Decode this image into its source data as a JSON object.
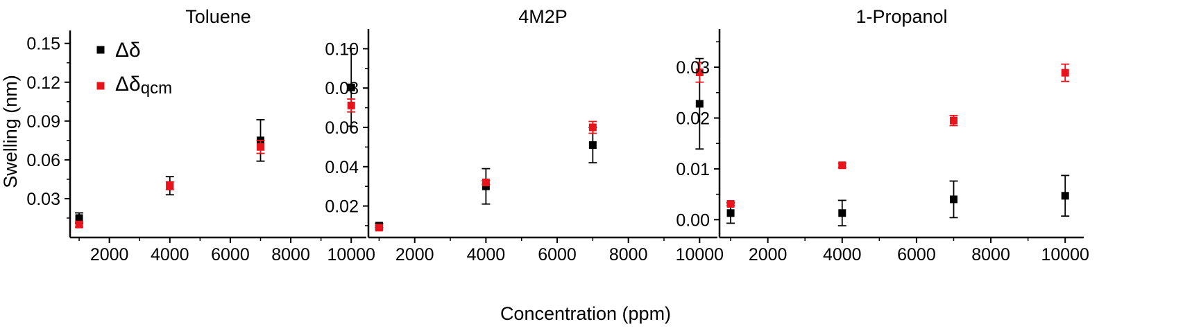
{
  "figure": {
    "ylabel": "Swelling (nm)",
    "xlabel": "Concentration (ppm)"
  },
  "legend": {
    "placement": "top-left of first panel",
    "entries": [
      {
        "symbol": "Δδ",
        "subscript": "",
        "color": "#000000"
      },
      {
        "symbol": "Δδ",
        "subscript": "qcm",
        "color": "#e8141b"
      }
    ]
  },
  "chart_data": [
    {
      "type": "scatter",
      "title": "Toluene",
      "xlabel": "Concentration (ppm)",
      "ylabel": "Swelling (nm)",
      "xlim": [
        700,
        10500
      ],
      "ylim": [
        0.0,
        0.16
      ],
      "xticks": [
        2000,
        4000,
        6000,
        8000,
        10000
      ],
      "yticks": [
        0.03,
        0.06,
        0.09,
        0.12,
        0.15
      ],
      "ytick_labels": [
        "0.03",
        "0.06",
        "0.09",
        "0.12",
        "0.15"
      ],
      "series": [
        {
          "name": "Δδ",
          "color": "#000000",
          "x": [
            1000,
            4000,
            7000,
            10000
          ],
          "y": [
            0.015,
            0.04,
            0.075,
            0.116
          ],
          "err": [
            0.004,
            0.007,
            0.016,
            0.03
          ]
        },
        {
          "name": "Δδqcm",
          "color": "#e8141b",
          "x": [
            1000,
            4000,
            7000,
            10000
          ],
          "y": [
            0.01,
            0.04,
            0.07,
            0.102
          ],
          "err": [
            0.002,
            0.003,
            0.005,
            0.005
          ]
        }
      ]
    },
    {
      "type": "scatter",
      "title": "4M2P",
      "xlabel": "Concentration (ppm)",
      "ylabel": "Swelling (nm)",
      "xlim": [
        700,
        10500
      ],
      "ylim": [
        0.004,
        0.11
      ],
      "xticks": [
        2000,
        4000,
        6000,
        8000,
        10000
      ],
      "yticks": [
        0.02,
        0.04,
        0.06,
        0.08,
        0.1
      ],
      "ytick_labels": [
        "0.02",
        "0.04",
        "0.06",
        "0.08",
        "0.10"
      ],
      "series": [
        {
          "name": "Δδ",
          "color": "#000000",
          "x": [
            1000,
            4000,
            7000,
            10000
          ],
          "y": [
            0.01,
            0.03,
            0.051,
            0.072
          ],
          "err": [
            0.001,
            0.009,
            0.009,
            0.023
          ]
        },
        {
          "name": "Δδqcm",
          "color": "#e8141b",
          "x": [
            1000,
            4000,
            7000,
            10000
          ],
          "y": [
            0.009,
            0.032,
            0.06,
            0.088
          ],
          "err": [
            0.001,
            0.001,
            0.003,
            0.005
          ]
        }
      ]
    },
    {
      "type": "scatter",
      "title": "1-Propanol",
      "xlabel": "Concentration (ppm)",
      "ylabel": "Swelling (nm)",
      "xlim": [
        700,
        10500
      ],
      "ylim": [
        -0.0035,
        0.0375
      ],
      "xticks": [
        2000,
        4000,
        6000,
        8000,
        10000
      ],
      "yticks": [
        0.0,
        0.01,
        0.02,
        0.03
      ],
      "ytick_labels": [
        "0.00",
        "0.01",
        "0.02",
        "0.03"
      ],
      "series": [
        {
          "name": "Δδ",
          "color": "#000000",
          "x": [
            1000,
            4000,
            7000,
            10000
          ],
          "y": [
            0.0013,
            0.0013,
            0.004,
            0.0047
          ],
          "err": [
            0.002,
            0.0025,
            0.0036,
            0.004
          ]
        },
        {
          "name": "Δδqcm",
          "color": "#e8141b",
          "x": [
            1000,
            4000,
            7000,
            10000
          ],
          "y": [
            0.0031,
            0.0107,
            0.0195,
            0.0289
          ],
          "err": [
            0.0003,
            0.0004,
            0.001,
            0.0017
          ]
        }
      ]
    }
  ]
}
